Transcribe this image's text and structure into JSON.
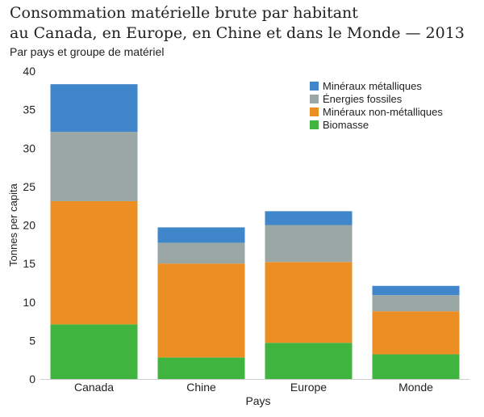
{
  "chart_data": {
    "type": "bar",
    "stacked": true,
    "title_lines": [
      "Consommation matérielle brute par habitant",
      "au Canada, en Europe, en Chine et dans le Monde — 2013"
    ],
    "subtitle": "Par pays et groupe de matériel",
    "xlabel": "Pays",
    "ylabel": "Tonnes per capita",
    "categories": [
      "Canada",
      "Chine",
      "Europe",
      "Monde"
    ],
    "ylim": [
      0,
      40
    ],
    "yticks": [
      0,
      5,
      10,
      15,
      20,
      25,
      30,
      35,
      40
    ],
    "grid": false,
    "legend_position": "top-right",
    "series": [
      {
        "name": "Biomasse",
        "color": "#3fb43f",
        "values": [
          7.1,
          2.8,
          4.7,
          3.2
        ]
      },
      {
        "name": "Minéraux non-métalliques",
        "color": "#eb8f25",
        "values": [
          16.0,
          12.2,
          10.5,
          5.6
        ]
      },
      {
        "name": "Énergies fossiles",
        "color": "#9aa7a4",
        "values": [
          9.0,
          2.7,
          4.8,
          2.1
        ]
      },
      {
        "name": "Minéraux métalliques",
        "color": "#3f86cb",
        "values": [
          6.2,
          2.0,
          1.8,
          1.2
        ]
      }
    ]
  }
}
